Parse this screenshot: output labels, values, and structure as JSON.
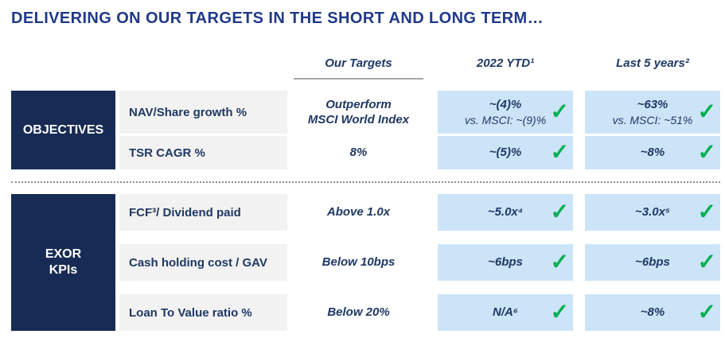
{
  "title": "DELIVERING ON OUR TARGETS IN THE SHORT AND LONG TERM…",
  "header": {
    "targets": "Our Targets",
    "ytd": "2022 YTD¹",
    "five_years": "Last 5 years²"
  },
  "icons": {
    "check": "✓"
  },
  "colors": {
    "title_blue": "#20398A",
    "navy_block": "#172B54",
    "text_navy": "#1F3864",
    "label_bg": "#F2F2F2",
    "value_bg": "#CCE4F8",
    "check_green": "#00B050",
    "underline_gray": "#A8A8A8"
  },
  "groups": [
    {
      "name": "OBJECTIVES",
      "rows": [
        {
          "label": "NAV/Share growth %",
          "target": "Outperform\nMSCI World Index",
          "ytd": "~(4)%",
          "ytd_sub": "vs. MSCI: ~(9)%",
          "five_years": "~63%",
          "five_years_sub": "vs. MSCI: ~51%"
        },
        {
          "label": "TSR CAGR %",
          "target": "8%",
          "ytd": "~(5)%",
          "five_years": "~8%"
        }
      ]
    },
    {
      "name": "EXOR\nKPIs",
      "rows": [
        {
          "label": "FCF³/ Dividend paid",
          "target": "Above 1.0x",
          "ytd": "~5.0x⁴",
          "five_years": "~3.0x⁵"
        },
        {
          "label": "Cash holding cost / GAV",
          "target": "Below 10bps",
          "ytd": "~6bps",
          "five_years": "~6bps"
        },
        {
          "label": "Loan To Value ratio %",
          "target": "Below 20%",
          "ytd": "N/A⁶",
          "five_years": "~8%"
        }
      ]
    }
  ]
}
